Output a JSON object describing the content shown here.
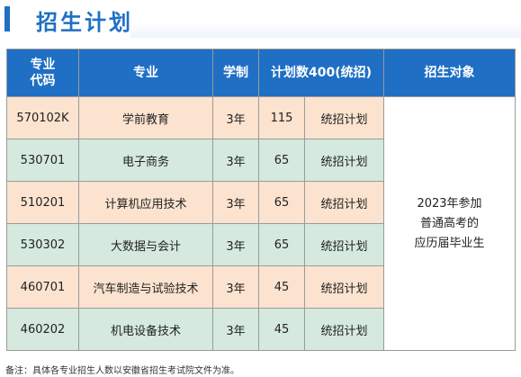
{
  "section": {
    "title": "招生计划"
  },
  "table": {
    "headers": {
      "code_line1": "专业",
      "code_line2": "代码",
      "major": "专业",
      "duration": "学制",
      "plan": "计划数400(统招)",
      "target": "招生对象"
    },
    "rows": [
      {
        "code": "570102K",
        "major": "学前教育",
        "duration": "3年",
        "count": "115",
        "type": "统招计划"
      },
      {
        "code": "530701",
        "major": "电子商务",
        "duration": "3年",
        "count": "65",
        "type": "统招计划"
      },
      {
        "code": "510201",
        "major": "计算机应用技术",
        "duration": "3年",
        "count": "65",
        "type": "统招计划"
      },
      {
        "code": "530302",
        "major": "大数据与会计",
        "duration": "3年",
        "count": "65",
        "type": "统招计划"
      },
      {
        "code": "460701",
        "major": "汽车制造与试验技术",
        "duration": "3年",
        "count": "45",
        "type": "统招计划"
      },
      {
        "code": "460202",
        "major": "机电设备技术",
        "duration": "3年",
        "count": "45",
        "type": "统招计划"
      }
    ],
    "target": {
      "line1": "2023年参加",
      "line2": "普通高考的",
      "line3": "应历届毕业生"
    }
  },
  "footnote": "备注：具体各专业招生人数以安徽省招生考试院文件为准。",
  "colors": {
    "accent": "#1f6fc4",
    "row_orange": "#fbe3cf",
    "row_green": "#d5e9de"
  }
}
